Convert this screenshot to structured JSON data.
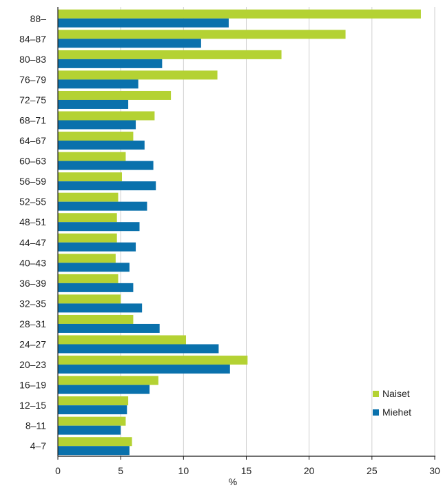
{
  "colors": {
    "naiset": "#b4d233",
    "miehet": "#0a71ac",
    "grid": "#cfcfcf",
    "axis": "#1b1b1b"
  },
  "chart_data": {
    "type": "bar",
    "orientation": "horizontal",
    "categories": [
      "88–",
      "84–87",
      "80–83",
      "76–79",
      "72–75",
      "68–71",
      "64–67",
      "60–63",
      "56–59",
      "52–55",
      "48–51",
      "44–47",
      "40–43",
      "36–39",
      "32–35",
      "28–31",
      "24–27",
      "20–23",
      "16–19",
      "12–15",
      "8–11",
      "4–7"
    ],
    "series": [
      {
        "name": "Naiset",
        "values": [
          28.9,
          22.9,
          17.8,
          12.7,
          9.0,
          7.7,
          6.0,
          5.4,
          5.1,
          4.8,
          4.7,
          4.7,
          4.6,
          4.8,
          5.0,
          6.0,
          10.2,
          15.1,
          8.0,
          5.6,
          5.4,
          5.9
        ]
      },
      {
        "name": "Miehet",
        "values": [
          13.6,
          11.4,
          8.3,
          6.4,
          5.6,
          6.2,
          6.9,
          7.6,
          7.8,
          7.1,
          6.5,
          6.2,
          5.7,
          6.0,
          6.7,
          8.1,
          12.8,
          13.7,
          7.3,
          5.5,
          5.0,
          5.7
        ]
      }
    ],
    "xlabel": "%",
    "ylabel": "",
    "xlim": [
      0,
      30
    ],
    "xticks": [
      0,
      5,
      10,
      15,
      20,
      25,
      30
    ],
    "grid": "vertical",
    "legend_position": "bottom-right"
  }
}
